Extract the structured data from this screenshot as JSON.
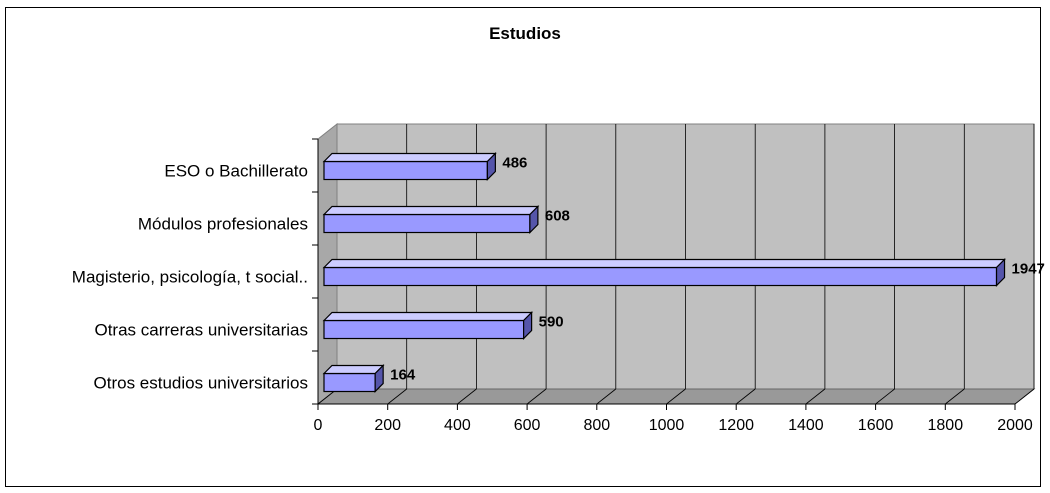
{
  "chart_data": {
    "type": "bar",
    "orientation": "horizontal",
    "title": "Estudios",
    "categories": [
      "ESO o Bachillerato",
      "Módulos profesionales",
      "Magisterio, psicología, t social..",
      "Otras carreras universitarias",
      "Otros estudios universitarios"
    ],
    "values": [
      486,
      608,
      1947,
      590,
      164
    ],
    "data_labels": [
      "486",
      "608",
      "1947",
      "590",
      "164"
    ],
    "xlim": [
      0,
      2000
    ],
    "xticks": [
      0,
      200,
      400,
      600,
      800,
      1000,
      1200,
      1400,
      1600,
      1800,
      2000
    ],
    "grid": true,
    "legend": "none",
    "colors": {
      "bar_front": "#9999ff",
      "bar_top": "#ccccff",
      "bar_side": "#5555aa",
      "plot_back": "#c0c0c0",
      "plot_floor": "#999999"
    }
  }
}
